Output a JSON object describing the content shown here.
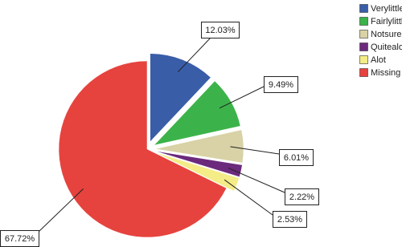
{
  "chart_data": {
    "type": "pie",
    "categories": [
      "Verylittle",
      "Fairlylittle",
      "Notsure",
      "Quitealot",
      "Alot",
      "Missing"
    ],
    "values": [
      12.03,
      9.49,
      6.01,
      2.22,
      2.53,
      67.72
    ],
    "value_labels": [
      "12.03%",
      "9.49%",
      "6.01%",
      "2.22%",
      "2.53%",
      "67.72%"
    ],
    "colors": [
      "#3a5da8",
      "#3cb34a",
      "#d8d2a6",
      "#6b2a7c",
      "#f4ec86",
      "#e6433e"
    ],
    "explode": [
      true,
      true,
      true,
      true,
      true,
      false
    ],
    "legend": "top-right"
  }
}
